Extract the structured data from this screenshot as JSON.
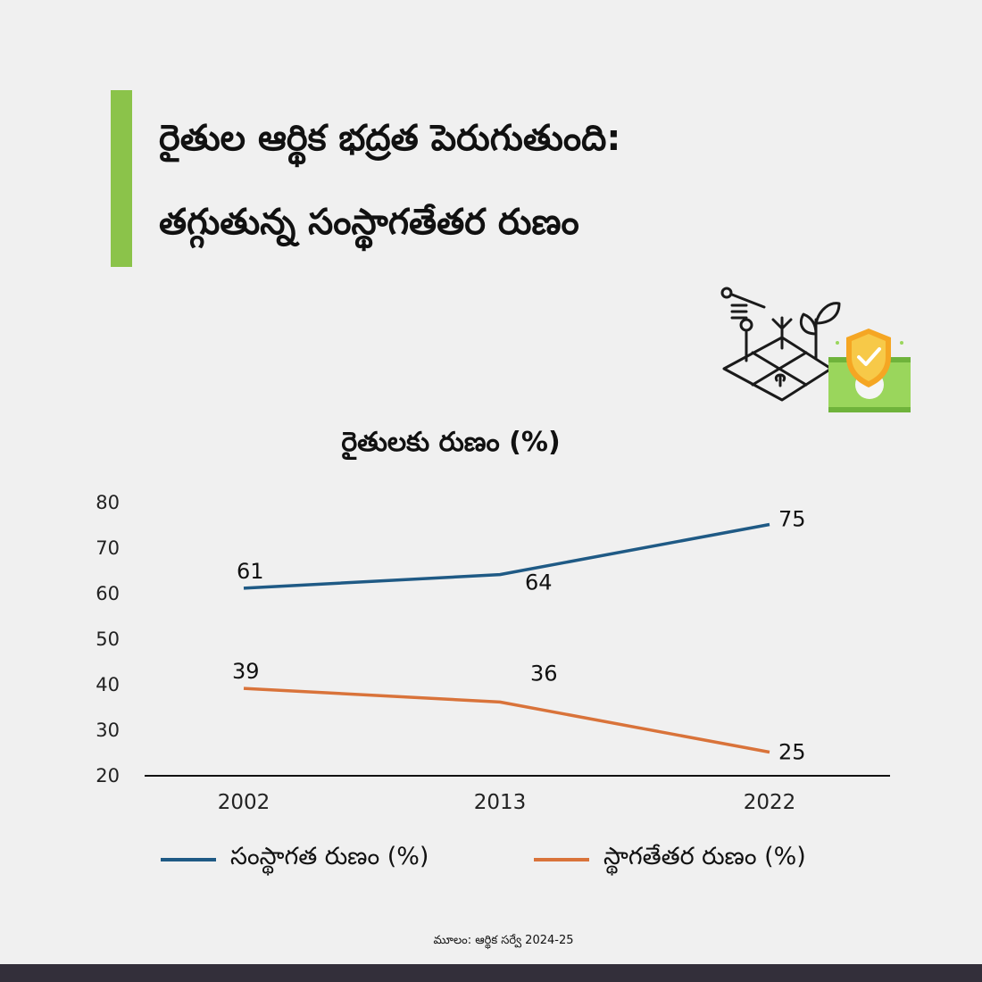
{
  "header": {
    "title_line1": "రైతుల ఆర్థిక భద్రత పెరుగుతుంది:",
    "title_line2": "తగ్గుతున్న సంస్థాగతేతర రుణం"
  },
  "icon": {
    "name": "farm-money-shield-icon"
  },
  "colors": {
    "accent": "#8bc34a",
    "series_institutional": "#1f5a85",
    "series_non_institutional": "#d9733a",
    "footer": "#332f3a"
  },
  "chart_data": {
    "type": "line",
    "title": "రైతులకు రుణం (%)",
    "x": [
      "2002",
      "2013",
      "2022"
    ],
    "ylim": [
      20,
      80
    ],
    "yticks": [
      "20",
      "30",
      "40",
      "50",
      "60",
      "70",
      "80"
    ],
    "grid": false,
    "legend_position": "bottom",
    "series": [
      {
        "name": "సంస్థాగత రుణం (%)",
        "values": [
          61,
          64,
          75
        ],
        "labels": [
          "61",
          "64",
          "75"
        ]
      },
      {
        "name": "స్థాగతేతర రుణం (%)",
        "values": [
          39,
          36,
          25
        ],
        "labels": [
          "39",
          "36",
          "25"
        ]
      }
    ]
  },
  "footer": {
    "source": "మూలం: ఆర్థిక సర్వే 2024-25"
  }
}
